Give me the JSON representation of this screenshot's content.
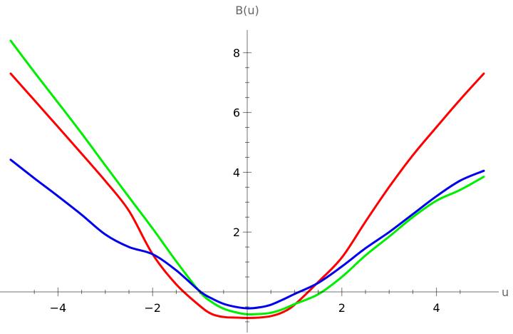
{
  "chart_data": {
    "type": "line",
    "title": "",
    "xlabel": "u",
    "ylabel": "B(u)",
    "xlim": [
      -5,
      5
    ],
    "ylim": [
      -1.3,
      8.8
    ],
    "x_ticks": [
      -4,
      -2,
      2,
      4
    ],
    "x_tick_labels": [
      "−4",
      "−2",
      "2",
      "4"
    ],
    "y_ticks": [
      2,
      4,
      6,
      8
    ],
    "y_tick_labels": [
      "2",
      "4",
      "6",
      "8"
    ],
    "x_minor_ticks": [
      -4.5,
      -3.5,
      -3,
      -2.5,
      -1.5,
      -1,
      -0.5,
      0.5,
      1,
      1.5,
      2.5,
      3,
      3.5,
      4.5
    ],
    "y_minor_ticks": [
      -1,
      -0.5,
      0.5,
      1,
      1.5,
      2.5,
      3,
      3.5,
      4.5,
      5,
      5.5,
      6.5,
      7,
      7.5
    ],
    "grid": false,
    "legend": "none",
    "x": [
      -5,
      -4.5,
      -4,
      -3.5,
      -3,
      -2.5,
      -2,
      -1.5,
      -1,
      -0.75,
      -0.5,
      -0.25,
      0,
      0.25,
      0.5,
      0.75,
      1,
      1.5,
      2,
      2.5,
      3,
      3.5,
      4,
      4.5,
      5
    ],
    "series": [
      {
        "color": "#ff0000",
        "values": [
          7.3,
          6.41,
          5.52,
          4.62,
          3.71,
          2.71,
          1.26,
          0.25,
          -0.47,
          -0.74,
          -0.84,
          -0.86,
          -0.87,
          -0.86,
          -0.81,
          -0.68,
          -0.43,
          0.33,
          1.15,
          2.35,
          3.51,
          4.57,
          5.51,
          6.43,
          7.3
        ]
      },
      {
        "color": "#00ee00",
        "values": [
          8.4,
          7.35,
          6.33,
          5.3,
          4.23,
          3.17,
          2.12,
          1.02,
          0.0,
          -0.34,
          -0.56,
          -0.68,
          -0.75,
          -0.74,
          -0.7,
          -0.58,
          -0.41,
          -0.08,
          0.5,
          1.22,
          1.85,
          2.5,
          3.05,
          3.41,
          3.85
        ]
      },
      {
        "color": "#0000ee",
        "values": [
          4.42,
          3.8,
          3.2,
          2.58,
          1.92,
          1.5,
          1.26,
          0.72,
          0.02,
          -0.22,
          -0.4,
          -0.5,
          -0.55,
          -0.52,
          -0.43,
          -0.26,
          -0.07,
          0.3,
          0.85,
          1.46,
          2.0,
          2.6,
          3.2,
          3.72,
          4.05
        ]
      }
    ]
  }
}
